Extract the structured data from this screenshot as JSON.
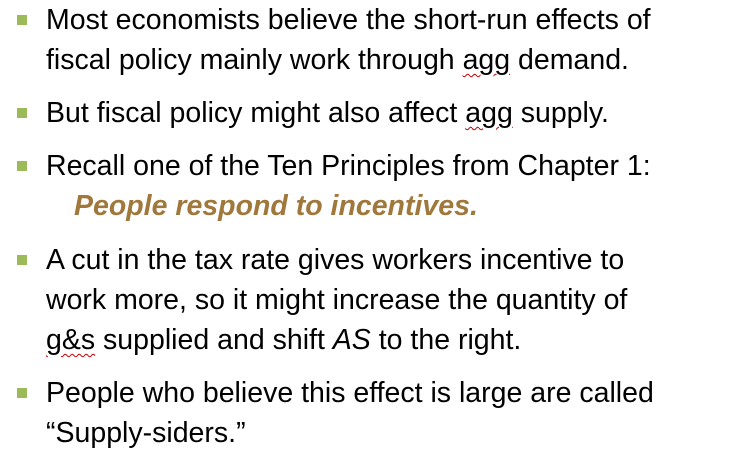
{
  "colors": {
    "bullet": "#9bbb59",
    "emphasis": "#a0783c",
    "spellcheck": "#c00000",
    "text": "#000000"
  },
  "bullets": [
    {
      "line1_a": "Most economists believe the short-run effects of",
      "line2_a": "fiscal policy mainly work through ",
      "line2_agg": "agg",
      "line2_b": " demand."
    },
    {
      "line1_a": "But fiscal policy might also affect ",
      "line1_agg": "agg",
      "line1_b": " supply."
    },
    {
      "line1_a": "Recall one of the Ten Principles from Chapter 1:",
      "emphasis": "People respond to incentives",
      "emphasis_tail": "."
    },
    {
      "line1_a": "A cut in the tax rate gives workers incentive to",
      "line2_a": "work more, so it might increase the quantity of",
      "line3_gs": "g&s",
      "line3_a": " supplied and shift ",
      "line3_as": "AS",
      "line3_b": " to the right."
    },
    {
      "line1_a": "People who believe this effect is large are called",
      "line2_a": "“Supply-siders.”"
    }
  ]
}
